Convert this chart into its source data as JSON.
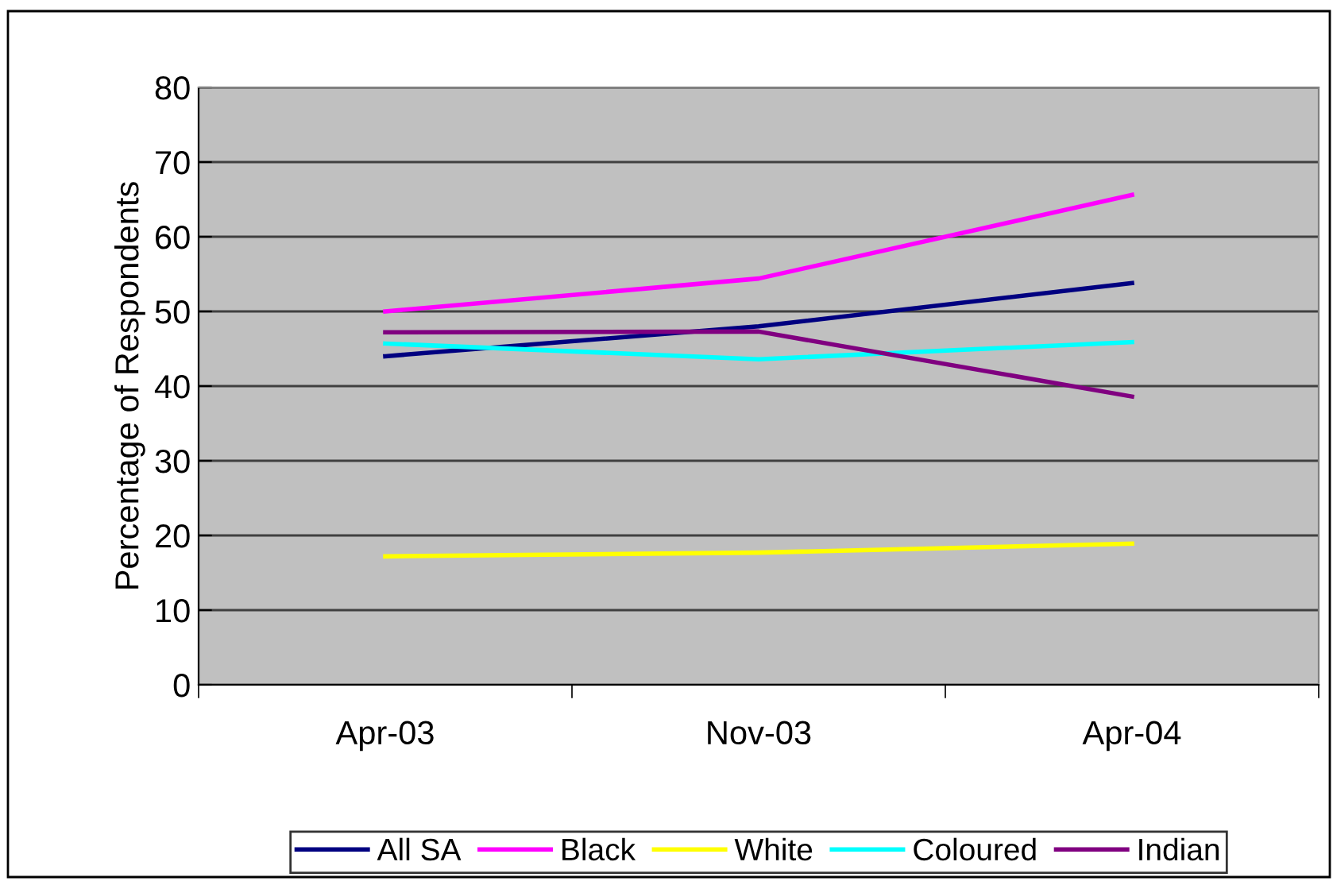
{
  "chart_data": {
    "type": "line",
    "ylabel": "Percentage of Respondents",
    "categories": [
      "Apr-03",
      "Nov-03",
      "Apr-04"
    ],
    "series": [
      {
        "name": "All SA",
        "color": "#000080",
        "values": [
          44,
          48,
          53.8
        ]
      },
      {
        "name": "Black",
        "color": "#ff00ff",
        "values": [
          50,
          54.4,
          65.6
        ]
      },
      {
        "name": "White",
        "color": "#ffff00",
        "values": [
          17.2,
          17.7,
          18.9
        ]
      },
      {
        "name": "Coloured",
        "color": "#00ffff",
        "values": [
          45.7,
          43.6,
          45.9
        ]
      },
      {
        "name": "Indian",
        "color": "#800080",
        "values": [
          47.2,
          47.3,
          38.6
        ]
      }
    ],
    "ylim": [
      0,
      80
    ],
    "yticks": [
      0,
      10,
      20,
      30,
      40,
      50,
      60,
      70,
      80
    ],
    "grid": "y",
    "legend": "bottom",
    "marker": "none",
    "line_style": "solid"
  }
}
